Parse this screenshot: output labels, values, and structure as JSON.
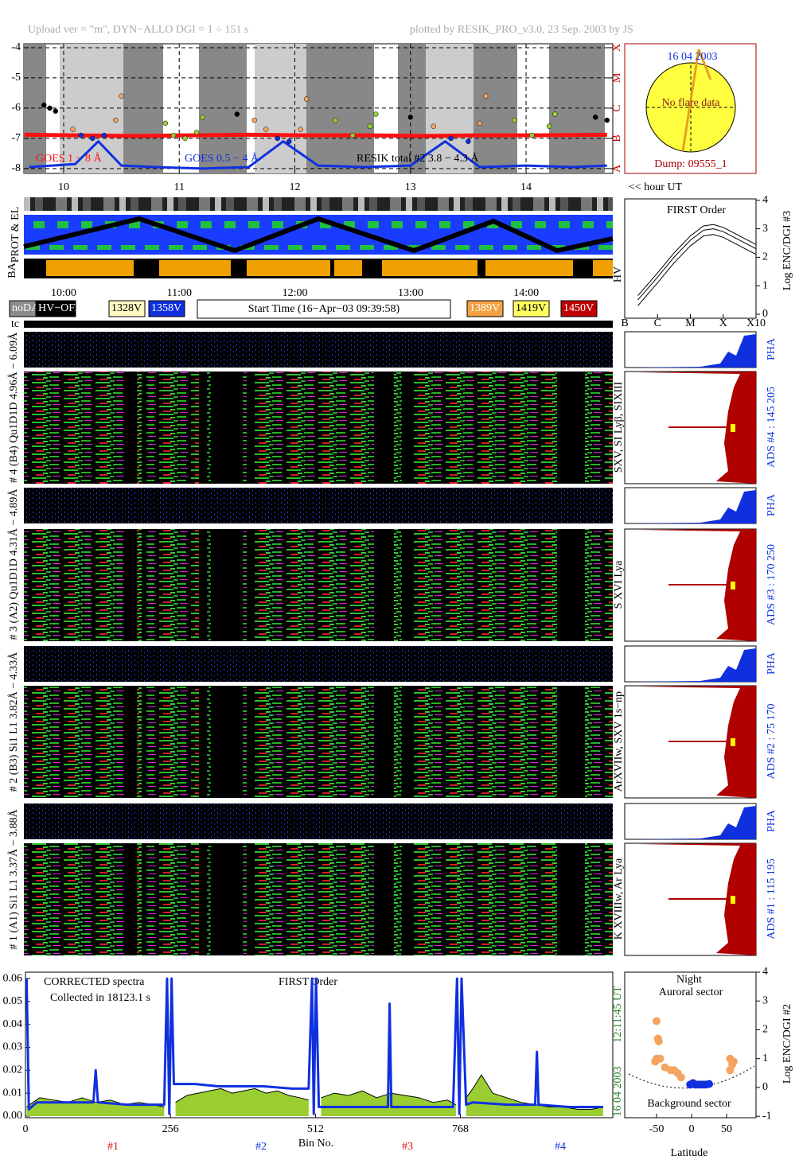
{
  "header": {
    "left": "Upload ver = \"m\", DYN−ALLO DGI =   1 ÷ 151 s",
    "right": "plotted by RESIK_PRO_v3.0, 23 Sep. 2003 by JS"
  },
  "sun": {
    "date": "16 04 2003",
    "status": "No flare data",
    "dump": "Dump: 09555_1"
  },
  "strips": {
    "prot_label": "PROT & EL",
    "ba_label": "BA",
    "hv_label": "HV",
    "hour_labels": [
      "10:00",
      "11:00",
      "12:00",
      "13:00",
      "14:00"
    ],
    "start_time": "Start Time (16−Apr−03 09:39:58)",
    "hv_legend": [
      {
        "label": "noDATA",
        "color": "#8c8c8c",
        "text_color": "#ffffff"
      },
      {
        "label": "HV−OFF",
        "color": "#000000",
        "text_color": "#ffffff"
      },
      {
        "label": "1328V",
        "color": "#fff8c0",
        "text_color": "#000000"
      },
      {
        "label": "1358V",
        "color": "#1030e0",
        "text_color": "#ffffff"
      },
      {
        "label": "1389V",
        "color": "#f4a040",
        "text_color": "#ffffff"
      },
      {
        "label": "1419V",
        "color": "#ffff60",
        "text_color": "#000000"
      },
      {
        "label": "1450V",
        "color": "#c00000",
        "text_color": "#ffffff"
      }
    ]
  },
  "spectrometer": {
    "tc_label": "tc",
    "channels": [
      {
        "label": "# 4 (B4) Qu1D1D 4.96Å − 6.09Å",
        "lines": "SXV, SI Lyβ, SIXIII",
        "ads": "ADS #4 :  145 205",
        "pha": "PHA"
      },
      {
        "label": "# 3 (A2) Qu1D1D 4.31Å − 4.89Å",
        "lines": "S XVI Lya",
        "ads": "ADS #3 :  170 250",
        "pha": "PHA"
      },
      {
        "label": "# 2 (B3) Si1 L1 3.82Å − 4.33Å",
        "lines": "ArXVIIw, SXV 1s−np",
        "ads": "ADS #2 :  75 170",
        "pha": "PHA"
      },
      {
        "label": "# 1 (A1) Si1 L1 3.37Å − 3.88Å",
        "lines": "K XVIIIw, Ar Lya",
        "ads": "ADS #1 :  115 195",
        "pha": "PHA"
      }
    ]
  },
  "chart_data": [
    {
      "type": "line",
      "annotation": "<< hour UT",
      "xlim": [
        9.656,
        14.75
      ],
      "xticks": [
        10,
        11,
        12,
        13,
        14
      ],
      "ylim": [
        -8.16,
        -3.87
      ],
      "yticks": [
        -8,
        -7,
        -6,
        -5,
        -4
      ],
      "y2lim": [
        -8.16,
        -3.87
      ],
      "y2ticks": [
        {
          "value": -8,
          "label": "A"
        },
        {
          "value": -7,
          "label": "B"
        },
        {
          "value": -6,
          "label": "C"
        },
        {
          "value": -5,
          "label": "M"
        },
        {
          "value": -4,
          "label": "X"
        }
      ],
      "grid": true,
      "series": [
        {
          "name": "GOES 1 − 8 Å",
          "color": "#ff1010",
          "line_width": 5,
          "x": [
            9.66,
            10.1,
            10.6,
            11.1,
            11.6,
            12.1,
            12.6,
            13.1,
            13.6,
            14.1,
            14.7
          ],
          "values": [
            -6.88,
            -6.9,
            -6.92,
            -6.9,
            -6.88,
            -6.9,
            -6.9,
            -6.92,
            -6.9,
            -6.9,
            -6.88
          ]
        },
        {
          "name": "GOES 0.5 − 4 Å",
          "color": "#1030e0",
          "line_width": 3,
          "x": [
            9.7,
            9.9,
            10.1,
            10.3,
            10.5,
            10.8,
            11.2,
            11.6,
            11.9,
            12.2,
            12.6,
            13.0,
            13.3,
            13.6,
            14.0,
            14.4,
            14.7
          ],
          "values": [
            -7.95,
            -7.9,
            -7.85,
            -7.1,
            -7.9,
            -7.95,
            -8.0,
            -7.95,
            -7.1,
            -7.9,
            -7.95,
            -7.9,
            -7.1,
            -7.95,
            -7.9,
            -7.95,
            -7.9
          ]
        },
        {
          "name": "RESIK total #2  3.8 − 4.3 Å",
          "color": "#000000",
          "marker": "circle",
          "x": [
            9.83,
            9.88,
            9.93,
            10.08,
            10.15,
            10.25,
            10.35,
            10.45,
            10.5,
            10.88,
            10.95,
            11.05,
            11.15,
            11.2,
            11.5,
            11.65,
            11.75,
            11.85,
            11.95,
            12.05,
            12.1,
            12.35,
            12.5,
            12.65,
            12.7,
            13.0,
            13.2,
            13.35,
            13.5,
            13.6,
            13.65,
            13.9,
            14.05,
            14.2,
            14.25,
            14.6,
            14.7
          ],
          "values": [
            -5.9,
            -6.0,
            -6.1,
            -6.7,
            -6.9,
            -7.0,
            -6.9,
            -6.4,
            -5.6,
            -6.5,
            -6.9,
            -7.0,
            -6.8,
            -6.3,
            -6.2,
            -6.4,
            -6.7,
            -7.0,
            -7.1,
            -6.7,
            -5.7,
            -6.4,
            -6.9,
            -6.6,
            -6.2,
            -6.3,
            -6.6,
            -7.0,
            -7.1,
            -6.5,
            -5.6,
            -6.4,
            -6.9,
            -6.6,
            -6.2,
            -6.3,
            -6.4
          ],
          "point_colors": [
            "#000000",
            "#000000",
            "#000000",
            "#f4a460",
            "#1030e0",
            "#1030e0",
            "#1030e0",
            "#f4a460",
            "#f4a460",
            "#9acd32",
            "#9acd32",
            "#9acd32",
            "#9acd32",
            "#9acd32",
            "#000000",
            "#f4a460",
            "#f4a460",
            "#1030e0",
            "#1030e0",
            "#f4a460",
            "#f4a460",
            "#9acd32",
            "#9acd32",
            "#9acd32",
            "#9acd32",
            "#000000",
            "#f4a460",
            "#1030e0",
            "#1030e0",
            "#f4a460",
            "#f4a460",
            "#9acd32",
            "#9acd32",
            "#9acd32",
            "#9acd32",
            "#000000",
            "#000000"
          ]
        }
      ]
    },
    {
      "type": "line",
      "title": "FIRST Order",
      "ylabel": "Log ENC/DGI #3",
      "xlim": [
        -7,
        -3
      ],
      "xticks": [
        {
          "value": -7,
          "label": "B"
        },
        {
          "value": -6,
          "label": "C"
        },
        {
          "value": -5,
          "label": "M"
        },
        {
          "value": -4,
          "label": "X"
        },
        {
          "value": -3,
          "label": "X10"
        }
      ],
      "ylim": [
        -0.14,
        4.05
      ],
      "yticks": [
        0,
        1,
        2,
        3,
        4
      ],
      "series": [
        {
          "color": "#000000",
          "line_width": 1,
          "x": [
            -6.6,
            -6,
            -5.5,
            -5,
            -4.6,
            -4.3,
            -4,
            -3.5,
            -3
          ],
          "values": [
            0.5,
            1.3,
            2.0,
            2.6,
            2.95,
            3.0,
            2.9,
            2.6,
            2.3
          ]
        },
        {
          "color": "#000000",
          "line_width": 1,
          "x": [
            -6.6,
            -6,
            -5.5,
            -5,
            -4.6,
            -4.3,
            -4,
            -3.5,
            -3
          ],
          "values": [
            0.65,
            1.45,
            2.15,
            2.75,
            3.1,
            3.15,
            3.05,
            2.75,
            2.45
          ]
        },
        {
          "color": "#000000",
          "line_width": 1,
          "x": [
            -6.6,
            -6,
            -5.5,
            -5,
            -4.6,
            -4.3,
            -4,
            -3.5,
            -3
          ],
          "values": [
            0.3,
            1.1,
            1.8,
            2.4,
            2.75,
            2.8,
            2.7,
            2.4,
            2.1
          ]
        }
      ]
    },
    {
      "type": "line",
      "annotations": [
        "CORRECTED spectra",
        "Collected in 18123.1 s",
        "FIRST Order"
      ],
      "side_labels": [
        "16 04 2003",
        "12:11:45 UT"
      ],
      "channel_labels": [
        "#1",
        "#2",
        "#3",
        "#4"
      ],
      "xlabel": "Bin No.",
      "xlim": [
        0,
        1037
      ],
      "xticks": [
        0,
        256,
        512,
        768
      ],
      "ylim": [
        -0.0007,
        0.0628
      ],
      "yticks": [
        {
          "value": 0,
          "label": "0.00"
        },
        0.01,
        0.02,
        0.03,
        0.04,
        0.05,
        0.06
      ],
      "series": [
        {
          "color": "#000000",
          "fill": "#9acd32",
          "line_width": 1,
          "x": [
            2,
            25,
            50,
            75,
            100,
            125,
            150,
            175,
            200,
            225,
            245,
            255,
            265,
            285,
            305,
            325,
            345,
            365,
            385,
            405,
            425,
            445,
            465,
            485,
            500,
            511,
            522,
            545,
            570,
            595,
            620,
            645,
            670,
            695,
            720,
            745,
            760,
            767,
            778,
            790,
            805,
            825,
            850,
            875,
            900,
            925,
            950,
            975,
            1000,
            1020
          ],
          "values": [
            0.004,
            0.008,
            0.007,
            0.006,
            0.008,
            0.006,
            0.007,
            0.005,
            0.006,
            0.005,
            0.004,
            null,
            0.006,
            0.009,
            0.01,
            0.011,
            0.012,
            0.01,
            0.011,
            0.012,
            0.01,
            0.011,
            0.009,
            0.008,
            0.007,
            null,
            0.008,
            0.01,
            0.009,
            0.011,
            0.008,
            0.01,
            0.009,
            0.008,
            0.006,
            0.007,
            0.005,
            null,
            0.008,
            0.012,
            0.018,
            0.01,
            0.008,
            0.006,
            0.005,
            0.004,
            0.004,
            0.003,
            0.003,
            0.004
          ]
        },
        {
          "color": "#1030e0",
          "line_width": 3,
          "x": [
            2,
            6,
            20,
            60,
            110,
            120,
            124,
            128,
            180,
            230,
            245,
            250,
            254,
            258,
            262,
            270,
            300,
            340,
            380,
            420,
            470,
            500,
            506,
            509,
            513,
            518,
            530,
            560,
            600,
            640,
            643,
            646,
            700,
            740,
            755,
            762,
            766,
            770,
            778,
            790,
            850,
            900,
            903,
            906,
            960,
            1000,
            1020
          ],
          "values": [
            0.06,
            0.003,
            0.006,
            0.006,
            0.006,
            0.006,
            0.02,
            0.006,
            0.005,
            0.005,
            0.005,
            0.06,
            0.001,
            0.06,
            0.014,
            0.014,
            0.014,
            0.013,
            0.013,
            0.013,
            0.012,
            0.012,
            0.06,
            0.001,
            0.06,
            0.004,
            0.004,
            0.004,
            0.004,
            0.004,
            0.049,
            0.004,
            0.004,
            0.004,
            0.004,
            0.06,
            0.001,
            0.06,
            0.005,
            0.006,
            0.005,
            0.005,
            0.028,
            0.005,
            0.004,
            0.004,
            0.004
          ]
        }
      ]
    },
    {
      "type": "scatter",
      "title": "Night",
      "annotations": [
        "Auroral sector",
        "Background sector"
      ],
      "xlabel": "Latitude",
      "ylabel": "Log ENC/DGI #2",
      "xlim": [
        -95.5,
        92
      ],
      "xticks": [
        -50,
        0,
        50
      ],
      "ylim": [
        -1.05,
        4.0
      ],
      "yticks": [
        -1,
        0,
        1,
        2,
        3,
        4
      ],
      "series": [
        {
          "color": "#f4a460",
          "marker": "circle",
          "x": [
            -50,
            -48,
            -47,
            -50,
            -52,
            -45,
            -38,
            -30,
            -25,
            -20,
            -15,
            55,
            58,
            60,
            55
          ],
          "values": [
            2.3,
            1.7,
            1.6,
            1.0,
            0.9,
            1.0,
            0.7,
            0.6,
            0.6,
            0.5,
            0.35,
            1.0,
            0.8,
            0.9,
            0.6
          ]
        },
        {
          "color": "#1030e0",
          "marker": "circle",
          "x": [
            -2,
            2,
            5,
            8,
            12,
            16,
            20,
            25
          ],
          "values": [
            0.1,
            0.15,
            0.1,
            0.1,
            0.1,
            0.1,
            0.1,
            0.12
          ]
        }
      ]
    }
  ]
}
